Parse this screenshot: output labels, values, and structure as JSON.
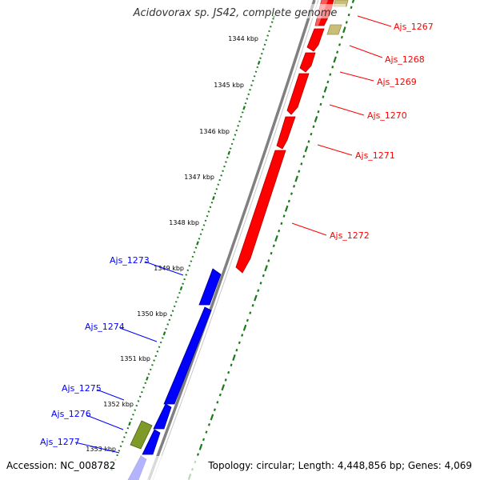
{
  "title": "Acidovorax sp. JS42, complete genome",
  "footer": {
    "accession": "Accession: NC_008782",
    "topology": "Topology: circular; Length: 4,448,856 bp; Genes: 4,069"
  },
  "colors": {
    "forward_gene": "#ff0000",
    "reverse_gene": "#0000ff",
    "other_feature": "#8fa030",
    "other_feature_light": "#c8be78",
    "backbone": "#808080",
    "tick": "#1a7a1a"
  },
  "scale": {
    "unit": "kbp",
    "labels": [
      "1344 kbp",
      "1345 kbp",
      "1346 kbp",
      "1347 kbp",
      "1348 kbp",
      "1349 kbp",
      "1350 kbp",
      "1351 kbp",
      "1352 kbp",
      "1353 kbp"
    ]
  },
  "forward_genes": [
    {
      "name": "Ajs_1267"
    },
    {
      "name": "Ajs_1268"
    },
    {
      "name": "Ajs_1269"
    },
    {
      "name": "Ajs_1270"
    },
    {
      "name": "Ajs_1271"
    },
    {
      "name": "Ajs_1272"
    }
  ],
  "reverse_genes": [
    {
      "name": "Ajs_1273"
    },
    {
      "name": "Ajs_1274"
    },
    {
      "name": "Ajs_1275"
    },
    {
      "name": "Ajs_1276"
    },
    {
      "name": "Ajs_1277"
    }
  ]
}
